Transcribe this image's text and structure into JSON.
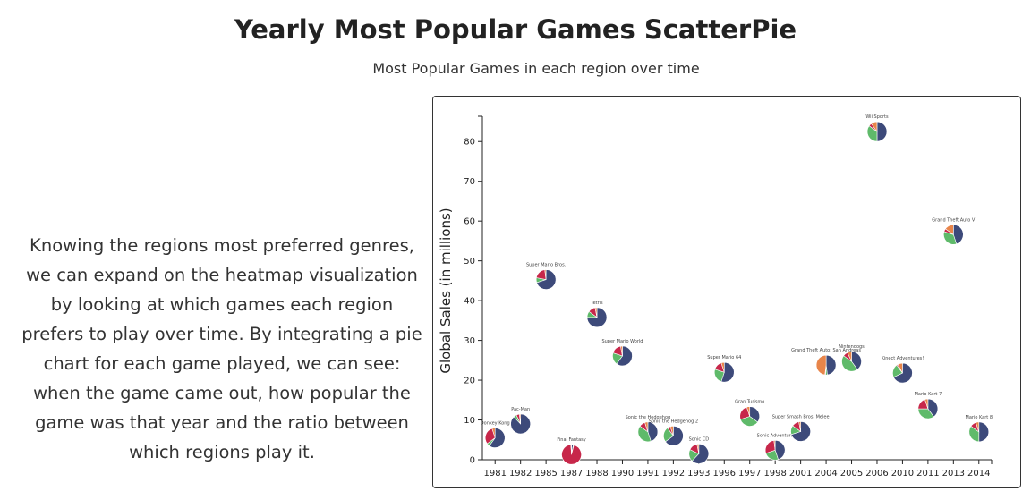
{
  "page": {
    "title": "Yearly Most Popular Games ScatterPie",
    "subtitle": "Most Popular Games in each region over time",
    "description": "Knowing the regions most preferred genres, we can expand on the heatmap visualization by looking at which games each region prefers to play over time. By integrating a pie chart for each game played, we can see: when the game came out, how popular the game was that year and the ratio between which regions play it."
  },
  "colors": {
    "NA": "#3d4a7a",
    "EU": "#5fba6a",
    "JP": "#c7274a",
    "Other": "#e8854a"
  },
  "chart_data": {
    "type": "scatter",
    "title": "",
    "xlabel": "",
    "ylabel": "Global Sales (in millions)",
    "ylim": [
      0,
      85
    ],
    "yticks": [
      0,
      10,
      20,
      30,
      40,
      50,
      60,
      70,
      80
    ],
    "categories": [
      "1981",
      "1982",
      "1985",
      "1987",
      "1988",
      "1990",
      "1991",
      "1992",
      "1993",
      "1996",
      "1997",
      "1998",
      "2001",
      "2004",
      "2005",
      "2006",
      "2010",
      "2011",
      "2013",
      "2014"
    ],
    "points": [
      {
        "year": "1981",
        "game": "Donkey Kong",
        "sales": 5.5,
        "radius": 11,
        "shares": [
          0.6,
          0.05,
          0.3,
          0.05
        ]
      },
      {
        "year": "1982",
        "game": "Pac-Man",
        "sales": 9.0,
        "radius": 11,
        "shares": [
          0.88,
          0.05,
          0.05,
          0.02
        ]
      },
      {
        "year": "1985",
        "game": "Super Mario Bros.",
        "sales": 45.3,
        "radius": 11,
        "shares": [
          0.7,
          0.08,
          0.2,
          0.02
        ]
      },
      {
        "year": "1987",
        "game": "Final Fantasy",
        "sales": 1.3,
        "radius": 11,
        "shares": [
          0.03,
          0.01,
          0.95,
          0.01
        ]
      },
      {
        "year": "1988",
        "game": "Tetris",
        "sales": 35.8,
        "radius": 11,
        "shares": [
          0.75,
          0.1,
          0.12,
          0.03
        ]
      },
      {
        "year": "1990",
        "game": "Super Mario World",
        "sales": 26.1,
        "radius": 11,
        "shares": [
          0.6,
          0.2,
          0.17,
          0.03
        ]
      },
      {
        "year": "1991",
        "game": "Sonic the Hedgehog",
        "sales": 7.0,
        "radius": 11,
        "shares": [
          0.45,
          0.4,
          0.1,
          0.05
        ]
      },
      {
        "year": "1992",
        "game": "Sonic the Hedgehog 2",
        "sales": 6.0,
        "radius": 11,
        "shares": [
          0.65,
          0.25,
          0.05,
          0.05
        ]
      },
      {
        "year": "1993",
        "game": "Sonic CD",
        "sales": 1.5,
        "radius": 11,
        "shares": [
          0.62,
          0.2,
          0.15,
          0.03
        ]
      },
      {
        "year": "1996",
        "game": "Super Mario 64",
        "sales": 22.0,
        "radius": 11,
        "shares": [
          0.55,
          0.25,
          0.15,
          0.05
        ]
      },
      {
        "year": "1997",
        "game": "Gran Turismo",
        "sales": 10.9,
        "radius": 11,
        "shares": [
          0.35,
          0.35,
          0.25,
          0.05
        ]
      },
      {
        "year": "1998",
        "game": "Sonic Adventure",
        "sales": 2.4,
        "radius": 11,
        "shares": [
          0.45,
          0.25,
          0.28,
          0.02
        ]
      },
      {
        "year": "2001",
        "game": "Super Smash Bros. Melee",
        "sales": 7.1,
        "radius": 11,
        "shares": [
          0.7,
          0.15,
          0.12,
          0.03
        ]
      },
      {
        "year": "2004",
        "game": "Grand Theft Auto: San Andreas",
        "sales": 23.8,
        "radius": 11,
        "shares": [
          0.48,
          0.03,
          0.01,
          0.48
        ]
      },
      {
        "year": "2005",
        "game": "Nintendogs",
        "sales": 24.7,
        "radius": 11,
        "shares": [
          0.4,
          0.45,
          0.08,
          0.07
        ]
      },
      {
        "year": "2006",
        "game": "Wii Sports",
        "sales": 82.5,
        "radius": 11,
        "shares": [
          0.5,
          0.35,
          0.05,
          0.1
        ]
      },
      {
        "year": "2010",
        "game": "Kinect Adventures!",
        "sales": 21.8,
        "radius": 11,
        "shares": [
          0.68,
          0.22,
          0.02,
          0.08
        ]
      },
      {
        "year": "2011",
        "game": "Mario Kart 7",
        "sales": 12.8,
        "radius": 11,
        "shares": [
          0.4,
          0.35,
          0.2,
          0.05
        ]
      },
      {
        "year": "2013",
        "game": "Grand Theft Auto V",
        "sales": 56.6,
        "radius": 11,
        "shares": [
          0.45,
          0.35,
          0.05,
          0.15
        ]
      },
      {
        "year": "2014",
        "game": "Mario Kart 8",
        "sales": 7.0,
        "radius": 11,
        "shares": [
          0.5,
          0.35,
          0.1,
          0.05
        ]
      }
    ]
  }
}
